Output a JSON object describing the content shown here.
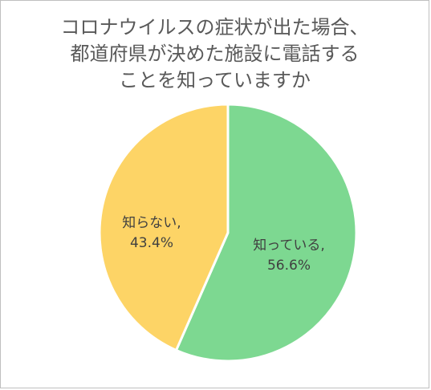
{
  "chart_data": {
    "type": "pie",
    "title_lines": [
      "コロナウイルスの症状が出た場合、",
      "都道府県が決めた施設に電話する",
      "ことを知っていますか"
    ],
    "slices": [
      {
        "label": "知っている",
        "value": 56.6,
        "display": "56.6%",
        "color": "#7dd891"
      },
      {
        "label": "知らない",
        "value": 43.4,
        "display": "43.4%",
        "color": "#fdd466"
      }
    ],
    "legend": "none",
    "label_separator": ","
  }
}
